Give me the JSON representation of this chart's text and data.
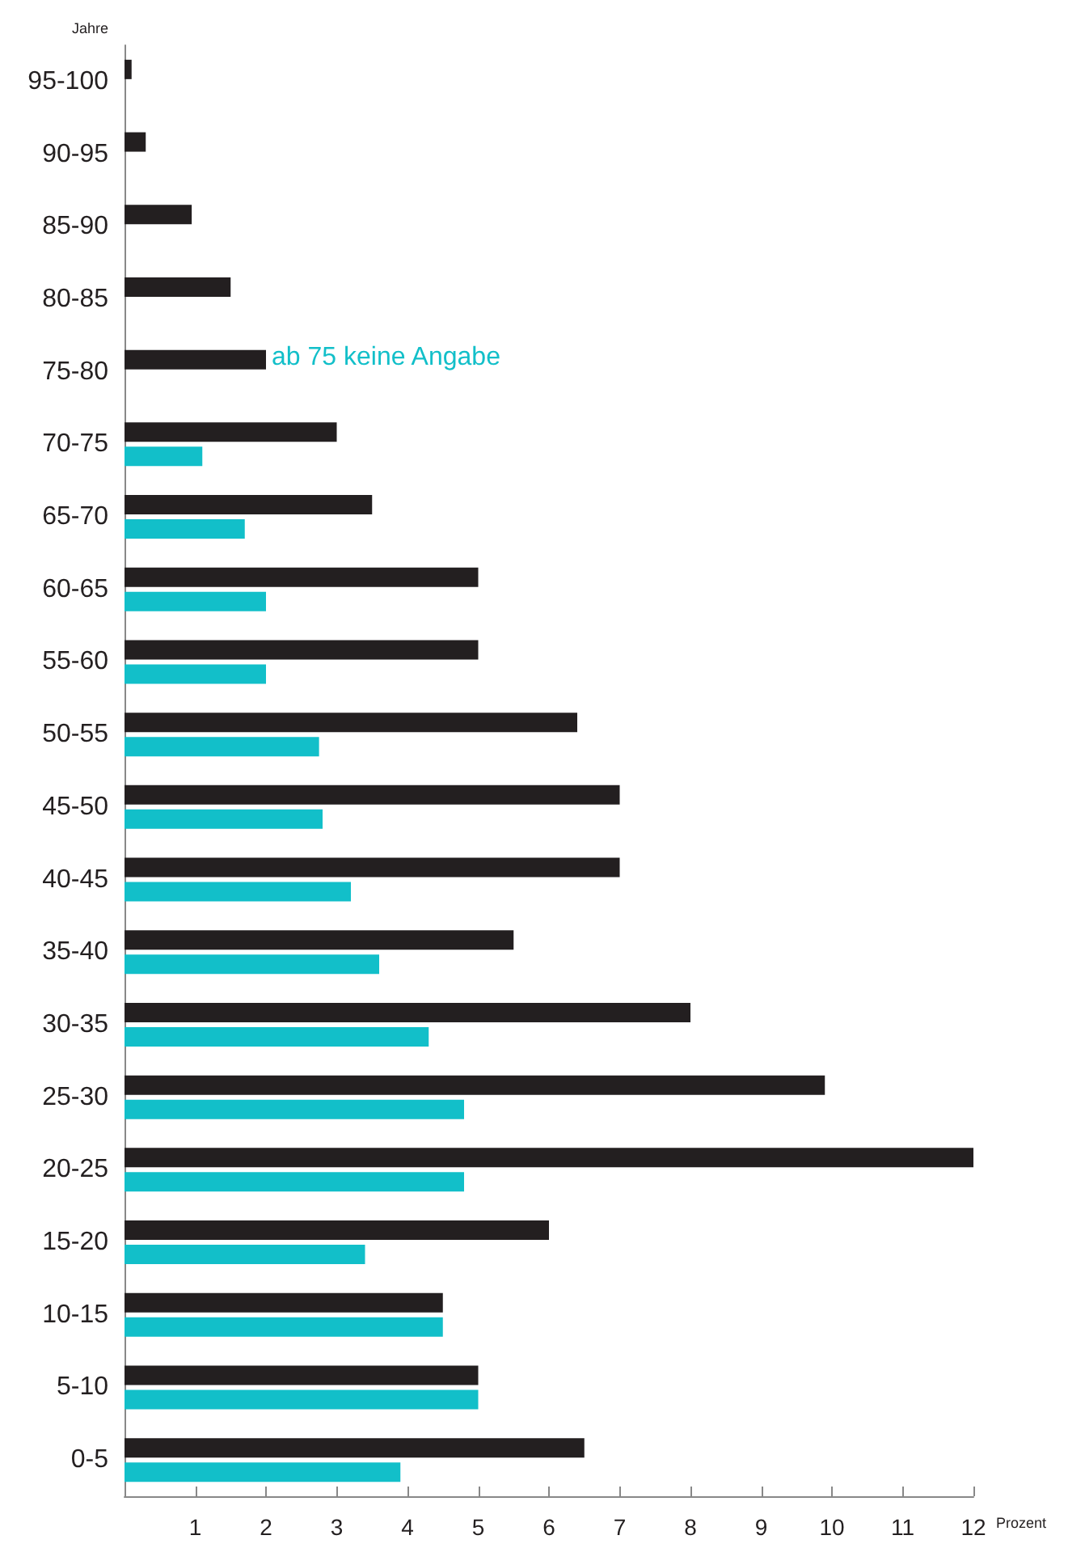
{
  "chart_data": {
    "type": "bar",
    "orientation": "horizontal",
    "categories": [
      "95-100",
      "90-95",
      "85-90",
      "80-85",
      "75-80",
      "70-75",
      "65-70",
      "60-65",
      "55-60",
      "50-55",
      "45-50",
      "40-45",
      "35-40",
      "30-35",
      "25-30",
      "20-25",
      "15-20",
      "10-15",
      "5-10",
      "0-5"
    ],
    "series": [
      {
        "color": "#231f20",
        "values": [
          0.1,
          0.3,
          0.95,
          1.5,
          2.0,
          3.0,
          3.5,
          5.0,
          5.0,
          6.4,
          7.0,
          7.0,
          5.5,
          8.0,
          9.9,
          12,
          6.0,
          4.5,
          5.0,
          6.5
        ]
      },
      {
        "color": "#12bfc9",
        "values": [
          null,
          null,
          null,
          null,
          null,
          1.1,
          1.7,
          2.0,
          2.0,
          2.75,
          2.8,
          3.2,
          3.6,
          4.3,
          4.8,
          4.8,
          3.4,
          4.5,
          5.0,
          3.9
        ]
      }
    ],
    "xlim": [
      0,
      12
    ],
    "xticks": [
      1,
      2,
      3,
      4,
      5,
      6,
      7,
      8,
      9,
      10,
      11,
      12
    ],
    "xlabel": "Prozent",
    "ylabel": "Jahre",
    "grid": false,
    "annotations": [
      "ab 75 keine Angabe"
    ]
  }
}
